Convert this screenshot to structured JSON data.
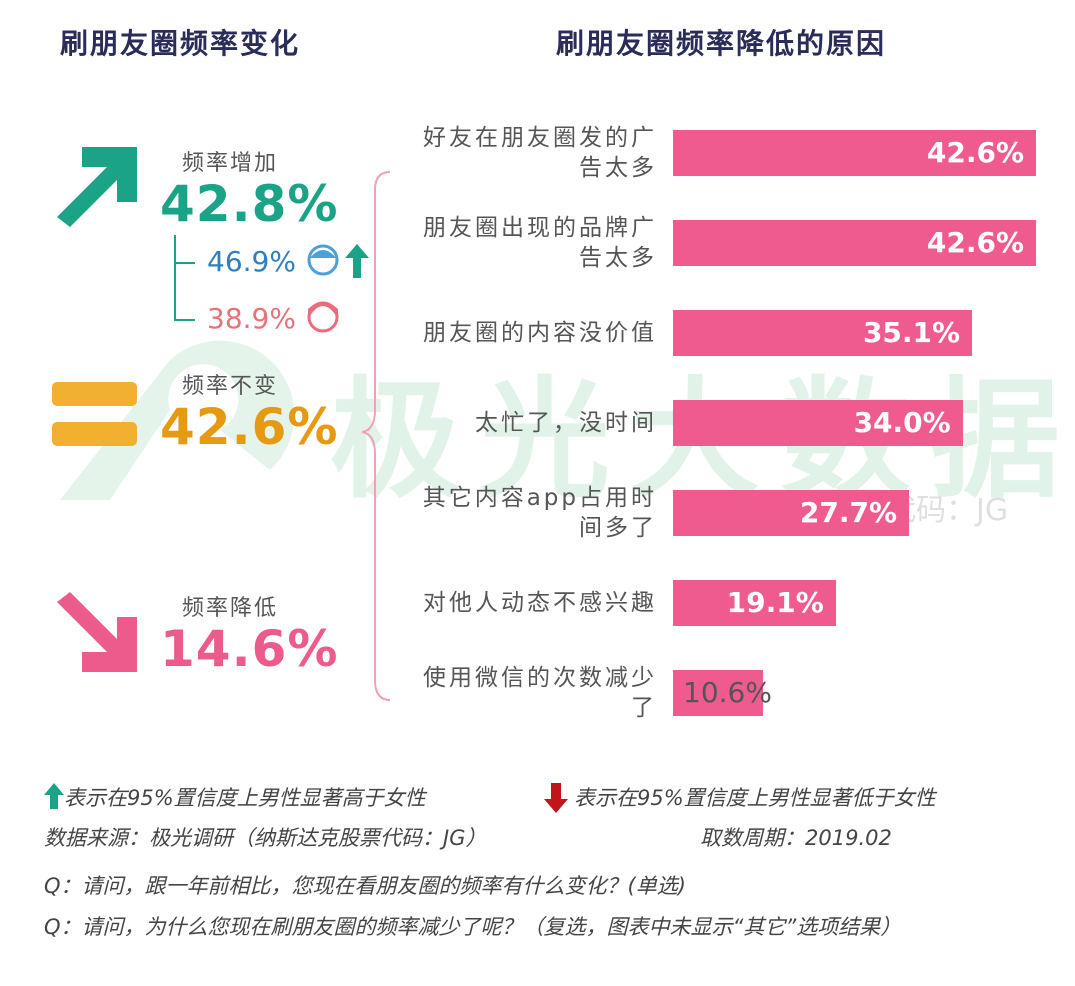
{
  "left_panel": {
    "title": "刷朋友圈频率变化",
    "increase": {
      "label": "频率增加",
      "value": "42.8%",
      "male": "46.9%",
      "female": "38.9%"
    },
    "unchanged": {
      "label": "频率不变",
      "value": "42.6%"
    },
    "decrease": {
      "label": "频率降低",
      "value": "14.6%"
    }
  },
  "chart_data": {
    "type": "bar",
    "orientation": "horizontal",
    "title": "刷朋友圈频率降低的原因",
    "categories": [
      "好友在朋友圈发的广告太多",
      "朋友圈出现的品牌广告太多",
      "朋友圈的内容没价值",
      "太忙了，没时间",
      "其它内容app占用时间多了",
      "对他人动态不感兴趣",
      "使用微信的次数减少了"
    ],
    "values": [
      42.6,
      42.6,
      35.1,
      34.0,
      27.7,
      19.1,
      10.6
    ],
    "value_labels": [
      "42.6%",
      "42.6%",
      "35.1%",
      "34.0%",
      "27.7%",
      "19.1%",
      "10.6%"
    ],
    "color": "#ef5a8f"
  },
  "watermark": {
    "brand": "极光大数据",
    "code": "纳斯达克股票代码：JG"
  },
  "footer": {
    "legend_up": "表示在95%置信度上男性显著高于女性",
    "legend_down": "表示在95%置信度上男性显著低于女性",
    "source": "数据来源：极光调研（纳斯达克股票代码：JG）",
    "period": "取数周期：2019.02",
    "q1": "Q：请问，跟一年前相比，您现在看朋友圈的频率有什么变化？(单选)",
    "q2": "Q：请问，为什么您现在刷朋友圈的频率减少了呢？（复选，图表中未显示“其它”选项结果）"
  }
}
